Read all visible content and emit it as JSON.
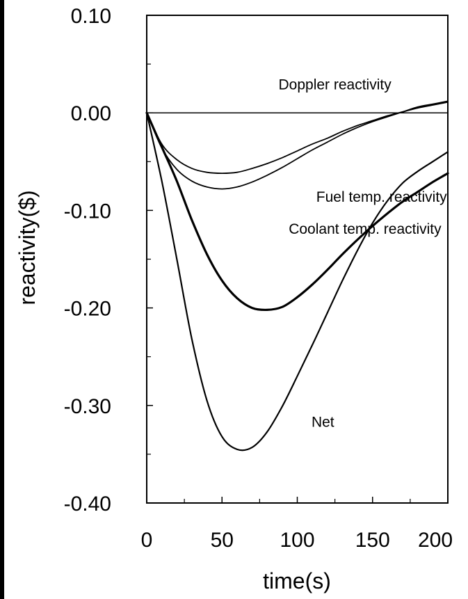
{
  "chart_data": {
    "type": "line",
    "xlabel": "time(s)",
    "ylabel": "reactivity($)",
    "xlim": [
      0,
      200
    ],
    "ylim": [
      -0.4,
      0.1
    ],
    "xticks": [
      0,
      50,
      100,
      150,
      200
    ],
    "xtick_labels": [
      "0",
      "50",
      "100",
      "150",
      "200"
    ],
    "yticks": [
      0.1,
      0.0,
      -0.1,
      -0.2,
      -0.3,
      -0.4
    ],
    "ytick_labels": [
      "0.10",
      "0.00",
      "-0.10",
      "-0.20",
      "-0.30",
      "-0.40"
    ],
    "y_minor_ticks": [
      0.05,
      -0.05,
      -0.15,
      -0.25,
      -0.35
    ],
    "x_minor_ticks": [
      25,
      75,
      125,
      175
    ],
    "zero_line": 0,
    "grid": false,
    "series": [
      {
        "name": "Doppler reactivity",
        "width": 1.8,
        "x": [
          0,
          10,
          20,
          30,
          40,
          50,
          60,
          70,
          80,
          90,
          100,
          110,
          120,
          130,
          140,
          150,
          160,
          170,
          180,
          190,
          200
        ],
        "y": [
          0,
          -0.032,
          -0.048,
          -0.057,
          -0.061,
          -0.062,
          -0.061,
          -0.057,
          -0.052,
          -0.046,
          -0.039,
          -0.032,
          -0.026,
          -0.019,
          -0.013,
          -0.008,
          -0.003,
          0.001,
          0.005,
          0.008,
          0.011
        ]
      },
      {
        "name": "Fuel temp. reactivity",
        "width": 1.8,
        "x": [
          0,
          10,
          20,
          30,
          40,
          50,
          60,
          70,
          80,
          90,
          100,
          110,
          120,
          130,
          140,
          150,
          160,
          170,
          180,
          190,
          200
        ],
        "y": [
          0,
          -0.036,
          -0.058,
          -0.07,
          -0.076,
          -0.078,
          -0.076,
          -0.071,
          -0.064,
          -0.056,
          -0.047,
          -0.038,
          -0.03,
          -0.022,
          -0.015,
          -0.009,
          -0.004,
          0.001,
          0.006,
          0.009,
          0.012
        ]
      },
      {
        "name": "Coolant temp. reactivity",
        "width": 3.2,
        "x": [
          0,
          10,
          20,
          30,
          40,
          50,
          60,
          70,
          80,
          90,
          100,
          110,
          120,
          130,
          140,
          150,
          160,
          170,
          180,
          190,
          200
        ],
        "y": [
          0,
          -0.035,
          -0.07,
          -0.11,
          -0.145,
          -0.172,
          -0.19,
          -0.2,
          -0.202,
          -0.199,
          -0.189,
          -0.176,
          -0.161,
          -0.145,
          -0.13,
          -0.116,
          -0.103,
          -0.091,
          -0.081,
          -0.071,
          -0.062
        ]
      },
      {
        "name": "Net",
        "width": 2.2,
        "x": [
          0,
          10,
          20,
          30,
          40,
          50,
          60,
          70,
          80,
          90,
          100,
          110,
          120,
          130,
          140,
          150,
          160,
          170,
          180,
          190,
          200
        ],
        "y": [
          0,
          -0.07,
          -0.15,
          -0.232,
          -0.295,
          -0.332,
          -0.345,
          -0.343,
          -0.327,
          -0.301,
          -0.27,
          -0.238,
          -0.205,
          -0.172,
          -0.141,
          -0.113,
          -0.09,
          -0.072,
          -0.06,
          -0.05,
          -0.04
        ]
      }
    ],
    "annotations": [
      {
        "text": "Doppler reactivity",
        "x": 125,
        "y": 0.024
      },
      {
        "text": "Fuel temp. reactivity",
        "x": 156,
        "y": -0.091
      },
      {
        "text": "Coolant temp. reactivity",
        "x": 145,
        "y": -0.124
      },
      {
        "text": "Net",
        "x": 117,
        "y": -0.322
      }
    ]
  }
}
